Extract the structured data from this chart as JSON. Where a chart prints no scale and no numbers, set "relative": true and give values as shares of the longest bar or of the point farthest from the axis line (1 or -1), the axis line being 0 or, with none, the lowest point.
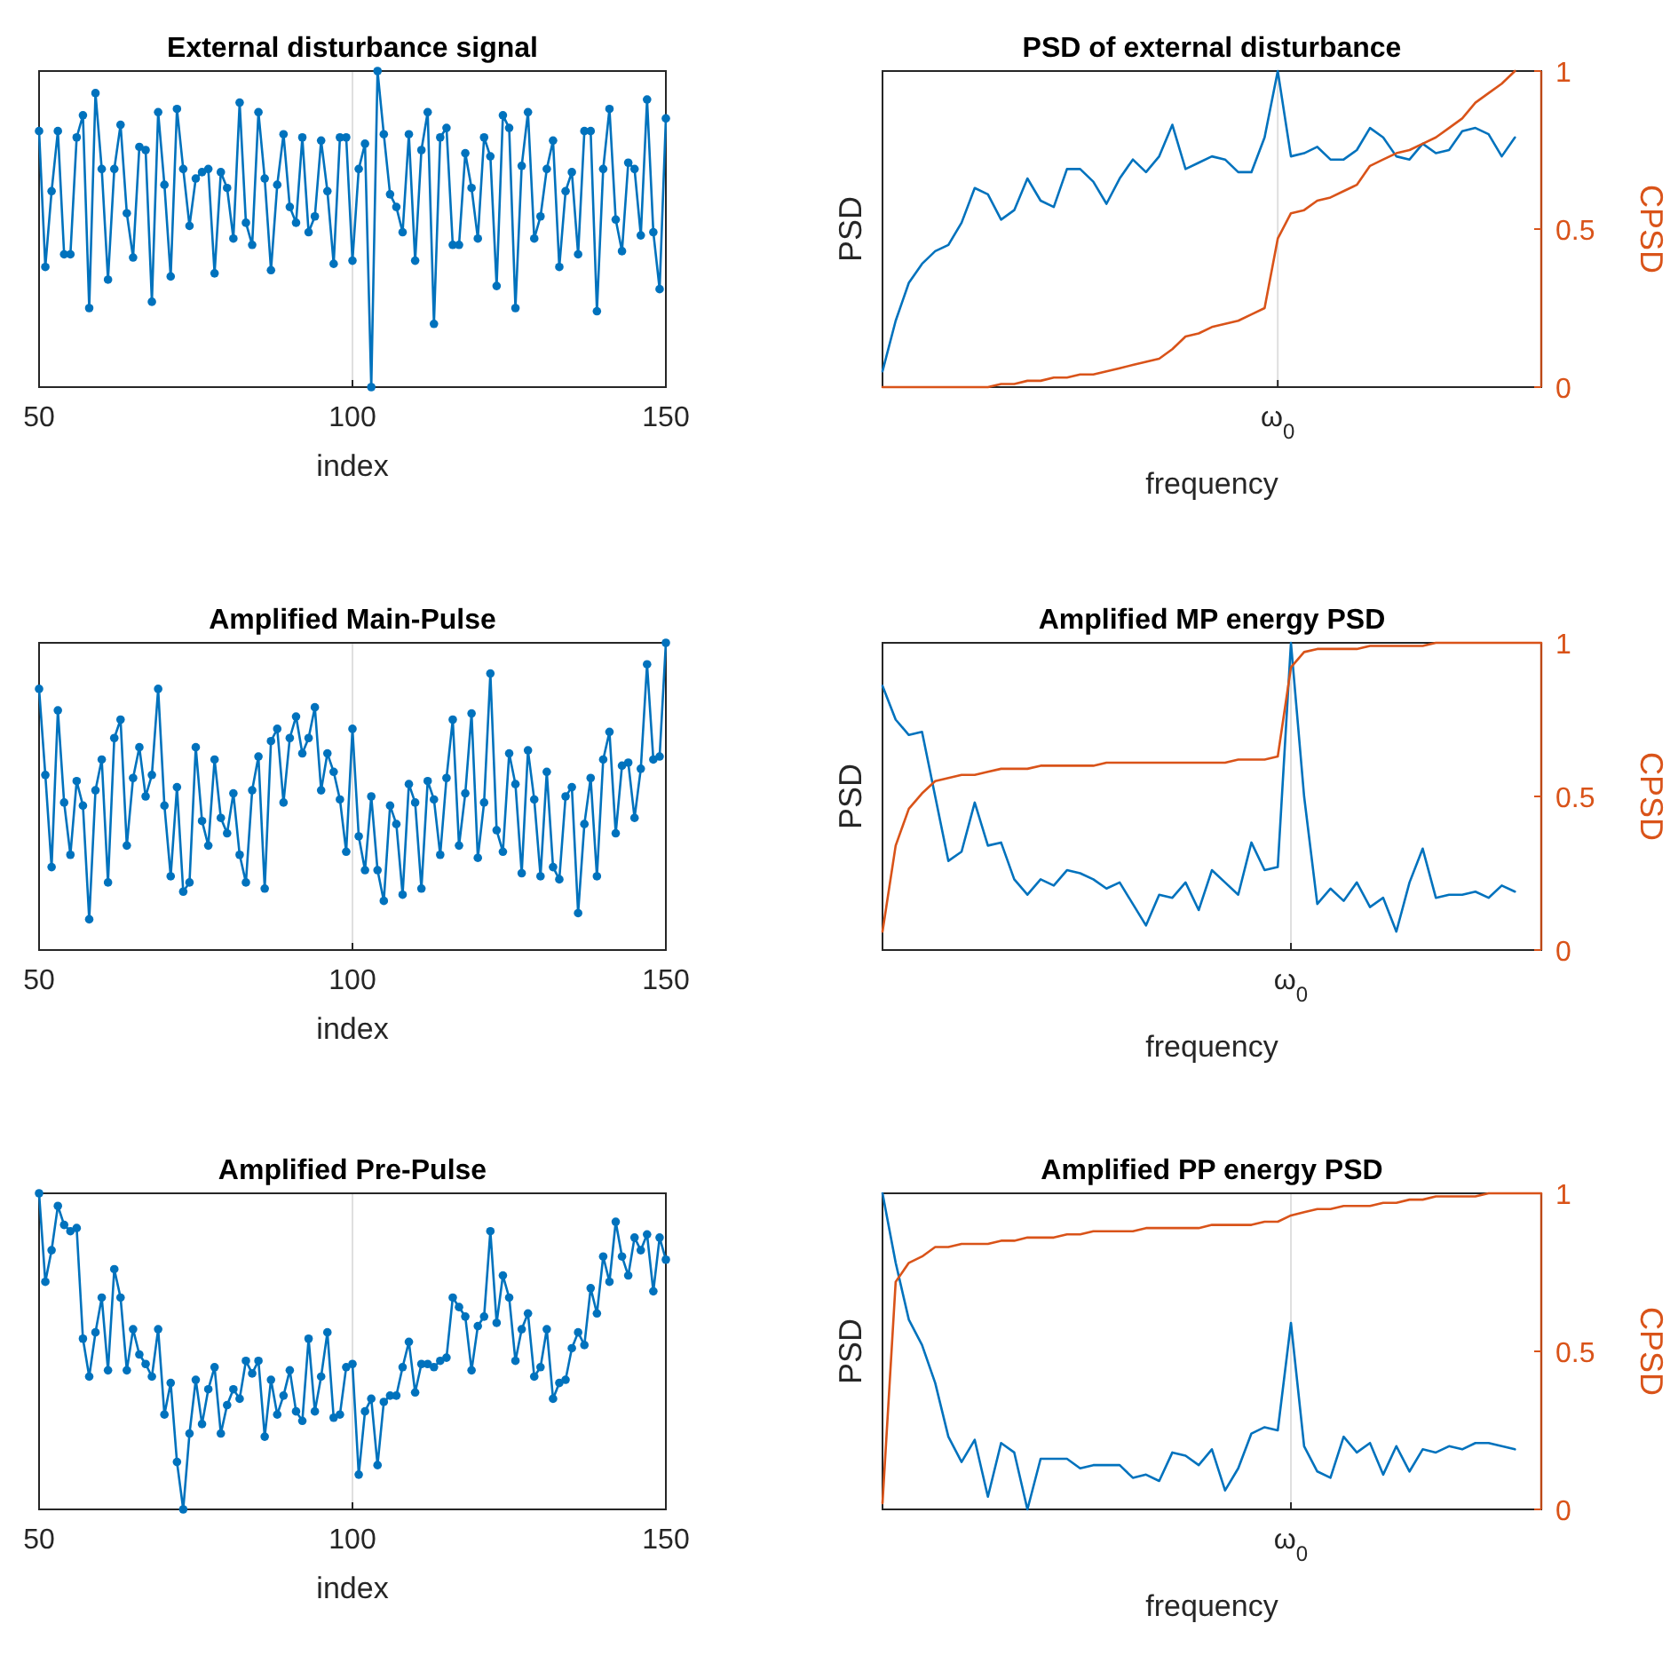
{
  "chart_data": [
    {
      "type": "line",
      "title": "External disturbance signal",
      "xlabel": "index",
      "relative": true,
      "marker": "circle",
      "grid": "x",
      "xlim": [
        50,
        150
      ],
      "xticks": [
        50,
        100,
        150
      ],
      "x": [
        50,
        51,
        52,
        53,
        54,
        55,
        56,
        57,
        58,
        59,
        60,
        61,
        62,
        63,
        64,
        65,
        66,
        67,
        68,
        69,
        70,
        71,
        72,
        73,
        74,
        75,
        76,
        77,
        78,
        79,
        80,
        81,
        82,
        83,
        84,
        85,
        86,
        87,
        88,
        89,
        90,
        91,
        92,
        93,
        94,
        95,
        96,
        97,
        98,
        99,
        100,
        101,
        102,
        103,
        104,
        105,
        106,
        107,
        108,
        109,
        110,
        111,
        112,
        113,
        114,
        115,
        116,
        117,
        118,
        119,
        120,
        121,
        122,
        123,
        124,
        125,
        126,
        127,
        128,
        129,
        130,
        131,
        132,
        133,
        134,
        135,
        136,
        137,
        138,
        139,
        140,
        141,
        142,
        143,
        144,
        145,
        146,
        147,
        148,
        149,
        150
      ],
      "series": [
        {
          "color": "#0072bd",
          "values": [
            0.81,
            0.38,
            0.62,
            0.81,
            0.42,
            0.42,
            0.79,
            0.86,
            0.25,
            0.93,
            0.69,
            0.34,
            0.69,
            0.83,
            0.55,
            0.41,
            0.76,
            0.75,
            0.27,
            0.87,
            0.64,
            0.35,
            0.88,
            0.69,
            0.51,
            0.66,
            0.68,
            0.69,
            0.36,
            0.68,
            0.63,
            0.47,
            0.9,
            0.52,
            0.45,
            0.87,
            0.66,
            0.37,
            0.64,
            0.8,
            0.57,
            0.52,
            0.79,
            0.49,
            0.54,
            0.78,
            0.62,
            0.39,
            0.79,
            0.79,
            0.4,
            0.69,
            0.77,
            0,
            1,
            0.8,
            0.61,
            0.57,
            0.49,
            0.8,
            0.4,
            0.75,
            0.87,
            0.2,
            0.79,
            0.82,
            0.45,
            0.45,
            0.74,
            0.63,
            0.47,
            0.79,
            0.73,
            0.32,
            0.86,
            0.82,
            0.25,
            0.7,
            0.87,
            0.47,
            0.54,
            0.69,
            0.78,
            0.38,
            0.62,
            0.68,
            0.42,
            0.81,
            0.81,
            0.24,
            0.69,
            0.88,
            0.53,
            0.43,
            0.71,
            0.69,
            0.48,
            0.91,
            0.49,
            0.31,
            0.85
          ]
        }
      ]
    },
    {
      "type": "line",
      "title": "PSD of external disturbance",
      "xlabel": "frequency",
      "ylabel": "PSD",
      "y2label": "CPSD",
      "relative": true,
      "grid": "x",
      "y2lim": [
        0,
        1
      ],
      "y2ticks": [
        0,
        0.5,
        1
      ],
      "categories": [
        null,
        null,
        null,
        null,
        null,
        null,
        null,
        null,
        null,
        null,
        null,
        null,
        null,
        null,
        null,
        null,
        null,
        null,
        null,
        null,
        null,
        null,
        null,
        null,
        null,
        null,
        null,
        null,
        null,
        null,
        "ω$_{0}$",
        null,
        null,
        null,
        null,
        null,
        null,
        null,
        null,
        null,
        null,
        null,
        null,
        null,
        null,
        null,
        null,
        null,
        null,
        null,
        null
      ],
      "series": [
        {
          "color": "#0072bd",
          "values": [
            0.05,
            0.21,
            0.33,
            0.39,
            0.43,
            0.45,
            0.52,
            0.63,
            0.61,
            0.53,
            0.56,
            0.66,
            0.59,
            0.57,
            0.69,
            0.69,
            0.65,
            0.58,
            0.66,
            0.72,
            0.68,
            0.73,
            0.83,
            0.69,
            0.71,
            0.73,
            0.72,
            0.68,
            0.68,
            0.79,
            1,
            0.73,
            0.74,
            0.76,
            0.72,
            0.72,
            0.75,
            0.82,
            0.79,
            0.73,
            0.72,
            0.77,
            0.74,
            0.75,
            0.81,
            0.82,
            0.8,
            0.73,
            0.79,
            null,
            null
          ]
        },
        {
          "color": "#d95319",
          "axis": "y2",
          "values": [
            0,
            0,
            0,
            0,
            0,
            0,
            0,
            0,
            0,
            0.01,
            0.01,
            0.02,
            0.02,
            0.03,
            0.03,
            0.04,
            0.04,
            0.05,
            0.06,
            0.07,
            0.08,
            0.09,
            0.12,
            0.16,
            0.17,
            0.19,
            0.2,
            0.21,
            0.23,
            0.25,
            0.47,
            0.55,
            0.56,
            0.59,
            0.6,
            0.62,
            0.64,
            0.7,
            0.72,
            0.74,
            0.75,
            0.77,
            0.79,
            0.82,
            0.85,
            0.9,
            0.93,
            0.96,
            1,
            null,
            null
          ]
        }
      ]
    },
    {
      "type": "line",
      "title": "Amplified Main-Pulse",
      "xlabel": "index",
      "relative": true,
      "marker": "circle",
      "grid": "x",
      "xlim": [
        50,
        150
      ],
      "xticks": [
        50,
        100,
        150
      ],
      "x": [
        50,
        51,
        52,
        53,
        54,
        55,
        56,
        57,
        58,
        59,
        60,
        61,
        62,
        63,
        64,
        65,
        66,
        67,
        68,
        69,
        70,
        71,
        72,
        73,
        74,
        75,
        76,
        77,
        78,
        79,
        80,
        81,
        82,
        83,
        84,
        85,
        86,
        87,
        88,
        89,
        90,
        91,
        92,
        93,
        94,
        95,
        96,
        97,
        98,
        99,
        100,
        101,
        102,
        103,
        104,
        105,
        106,
        107,
        108,
        109,
        110,
        111,
        112,
        113,
        114,
        115,
        116,
        117,
        118,
        119,
        120,
        121,
        122,
        123,
        124,
        125,
        126,
        127,
        128,
        129,
        130,
        131,
        132,
        133,
        134,
        135,
        136,
        137,
        138,
        139,
        140,
        141,
        142,
        143,
        144,
        145,
        146,
        147,
        148,
        149,
        150
      ],
      "series": [
        {
          "color": "#0072bd",
          "values": [
            0.85,
            0.57,
            0.27,
            0.78,
            0.48,
            0.31,
            0.55,
            0.47,
            0.1,
            0.52,
            0.62,
            0.22,
            0.69,
            0.75,
            0.34,
            0.56,
            0.66,
            0.5,
            0.57,
            0.85,
            0.47,
            0.24,
            0.53,
            0.19,
            0.22,
            0.66,
            0.42,
            0.34,
            0.62,
            0.43,
            0.38,
            0.51,
            0.31,
            0.22,
            0.52,
            0.63,
            0.2,
            0.68,
            0.72,
            0.48,
            0.69,
            0.76,
            0.64,
            0.69,
            0.79,
            0.52,
            0.64,
            0.58,
            0.49,
            0.32,
            0.72,
            0.37,
            0.26,
            0.5,
            0.26,
            0.16,
            0.47,
            0.41,
            0.18,
            0.54,
            0.48,
            0.2,
            0.55,
            0.49,
            0.31,
            0.56,
            0.75,
            0.34,
            0.51,
            0.77,
            0.3,
            0.48,
            0.9,
            0.39,
            0.32,
            0.64,
            0.54,
            0.25,
            0.65,
            0.49,
            0.24,
            0.58,
            0.27,
            0.23,
            0.5,
            0.53,
            0.12,
            0.41,
            0.56,
            0.24,
            0.62,
            0.71,
            0.38,
            0.6,
            0.61,
            0.43,
            0.59,
            0.93,
            0.62,
            0.63,
            1
          ]
        }
      ]
    },
    {
      "type": "line",
      "title": "Amplified MP energy PSD",
      "xlabel": "frequency",
      "ylabel": "PSD",
      "y2label": "CPSD",
      "relative": true,
      "grid": "x",
      "y2lim": [
        0,
        1
      ],
      "y2ticks": [
        0,
        0.5,
        1
      ],
      "categories": [
        null,
        null,
        null,
        null,
        null,
        null,
        null,
        null,
        null,
        null,
        null,
        null,
        null,
        null,
        null,
        null,
        null,
        null,
        null,
        null,
        null,
        null,
        null,
        null,
        null,
        null,
        null,
        null,
        null,
        null,
        null,
        "ω$_{0}$",
        null,
        null,
        null,
        null,
        null,
        null,
        null,
        null,
        null,
        null,
        null,
        null,
        null,
        null,
        null,
        null,
        null,
        null,
        null
      ],
      "series": [
        {
          "color": "#0072bd",
          "values": [
            0.86,
            0.75,
            0.7,
            0.71,
            0.5,
            0.29,
            0.32,
            0.48,
            0.34,
            0.35,
            0.23,
            0.18,
            0.23,
            0.21,
            0.26,
            0.25,
            0.23,
            0.2,
            0.22,
            0.15,
            0.08,
            0.18,
            0.17,
            0.22,
            0.13,
            0.26,
            0.22,
            0.18,
            0.35,
            0.26,
            0.27,
            1,
            0.5,
            0.15,
            0.2,
            0.16,
            0.22,
            0.14,
            0.17,
            0.06,
            0.22,
            0.33,
            0.17,
            0.18,
            0.18,
            0.19,
            0.17,
            0.21,
            0.19,
            null,
            null
          ]
        },
        {
          "color": "#d95319",
          "axis": "y2",
          "values": [
            0.06,
            0.34,
            0.46,
            0.51,
            0.55,
            0.56,
            0.57,
            0.57,
            0.58,
            0.59,
            0.59,
            0.59,
            0.6,
            0.6,
            0.6,
            0.6,
            0.6,
            0.61,
            0.61,
            0.61,
            0.61,
            0.61,
            0.61,
            0.61,
            0.61,
            0.61,
            0.61,
            0.62,
            0.62,
            0.62,
            0.63,
            0.92,
            0.97,
            0.98,
            0.98,
            0.98,
            0.98,
            0.99,
            0.99,
            0.99,
            0.99,
            0.99,
            1,
            1,
            1,
            1,
            1,
            1,
            1,
            1,
            1
          ]
        }
      ]
    },
    {
      "type": "line",
      "title": "Amplified Pre-Pulse",
      "xlabel": "index",
      "relative": true,
      "marker": "circle",
      "grid": "x",
      "xlim": [
        50,
        150
      ],
      "xticks": [
        50,
        100,
        150
      ],
      "x": [
        50,
        51,
        52,
        53,
        54,
        55,
        56,
        57,
        58,
        59,
        60,
        61,
        62,
        63,
        64,
        65,
        66,
        67,
        68,
        69,
        70,
        71,
        72,
        73,
        74,
        75,
        76,
        77,
        78,
        79,
        80,
        81,
        82,
        83,
        84,
        85,
        86,
        87,
        88,
        89,
        90,
        91,
        92,
        93,
        94,
        95,
        96,
        97,
        98,
        99,
        100,
        101,
        102,
        103,
        104,
        105,
        106,
        107,
        108,
        109,
        110,
        111,
        112,
        113,
        114,
        115,
        116,
        117,
        118,
        119,
        120,
        121,
        122,
        123,
        124,
        125,
        126,
        127,
        128,
        129,
        130,
        131,
        132,
        133,
        134,
        135,
        136,
        137,
        138,
        139,
        140,
        141,
        142,
        143,
        144,
        145,
        146,
        147,
        148,
        149,
        150
      ],
      "series": [
        {
          "color": "#0072bd",
          "values": [
            1,
            0.72,
            0.82,
            0.96,
            0.9,
            0.88,
            0.89,
            0.54,
            0.42,
            0.56,
            0.67,
            0.44,
            0.76,
            0.67,
            0.44,
            0.57,
            0.49,
            0.46,
            0.42,
            0.57,
            0.3,
            0.4,
            0.15,
            0,
            0.24,
            0.41,
            0.27,
            0.38,
            0.45,
            0.24,
            0.33,
            0.38,
            0.35,
            0.47,
            0.43,
            0.47,
            0.23,
            0.41,
            0.3,
            0.36,
            0.44,
            0.31,
            0.28,
            0.54,
            0.31,
            0.42,
            0.56,
            0.29,
            0.3,
            0.45,
            0.46,
            0.11,
            0.31,
            0.35,
            0.14,
            0.34,
            0.36,
            0.36,
            0.45,
            0.53,
            0.37,
            0.46,
            0.46,
            0.45,
            0.47,
            0.48,
            0.67,
            0.64,
            0.61,
            0.44,
            0.58,
            0.61,
            0.88,
            0.59,
            0.74,
            0.67,
            0.47,
            0.57,
            0.62,
            0.42,
            0.45,
            0.57,
            0.35,
            0.4,
            0.41,
            0.51,
            0.56,
            0.52,
            0.7,
            0.62,
            0.8,
            0.72,
            0.91,
            0.8,
            0.74,
            0.86,
            0.82,
            0.87,
            0.69,
            0.86,
            0.79
          ]
        }
      ]
    },
    {
      "type": "line",
      "title": "Amplified PP energy PSD",
      "xlabel": "frequency",
      "ylabel": "PSD",
      "y2label": "CPSD",
      "relative": true,
      "grid": "x",
      "y2lim": [
        0,
        1
      ],
      "y2ticks": [
        0,
        0.5,
        1
      ],
      "categories": [
        null,
        null,
        null,
        null,
        null,
        null,
        null,
        null,
        null,
        null,
        null,
        null,
        null,
        null,
        null,
        null,
        null,
        null,
        null,
        null,
        null,
        null,
        null,
        null,
        null,
        null,
        null,
        null,
        null,
        null,
        null,
        "ω$_{0}$",
        null,
        null,
        null,
        null,
        null,
        null,
        null,
        null,
        null,
        null,
        null,
        null,
        null,
        null,
        null,
        null,
        null,
        null,
        null
      ],
      "series": [
        {
          "color": "#0072bd",
          "values": [
            1,
            0.78,
            0.6,
            0.52,
            0.4,
            0.23,
            0.15,
            0.22,
            0.04,
            0.21,
            0.18,
            0,
            0.16,
            0.16,
            0.16,
            0.13,
            0.14,
            0.14,
            0.14,
            0.1,
            0.11,
            0.09,
            0.18,
            0.17,
            0.14,
            0.19,
            0.06,
            0.13,
            0.24,
            0.26,
            0.25,
            0.59,
            0.2,
            0.12,
            0.1,
            0.23,
            0.18,
            0.21,
            0.11,
            0.2,
            0.12,
            0.19,
            0.18,
            0.2,
            0.19,
            0.21,
            0.21,
            0.2,
            0.19,
            null,
            null
          ]
        },
        {
          "color": "#d95319",
          "axis": "y2",
          "values": [
            0.02,
            0.72,
            0.78,
            0.8,
            0.83,
            0.83,
            0.84,
            0.84,
            0.84,
            0.85,
            0.85,
            0.86,
            0.86,
            0.86,
            0.87,
            0.87,
            0.88,
            0.88,
            0.88,
            0.88,
            0.89,
            0.89,
            0.89,
            0.89,
            0.89,
            0.9,
            0.9,
            0.9,
            0.9,
            0.91,
            0.91,
            0.93,
            0.94,
            0.95,
            0.95,
            0.96,
            0.96,
            0.96,
            0.97,
            0.97,
            0.98,
            0.98,
            0.99,
            0.99,
            0.99,
            0.99,
            1,
            1,
            1,
            1,
            1
          ]
        }
      ]
    }
  ]
}
